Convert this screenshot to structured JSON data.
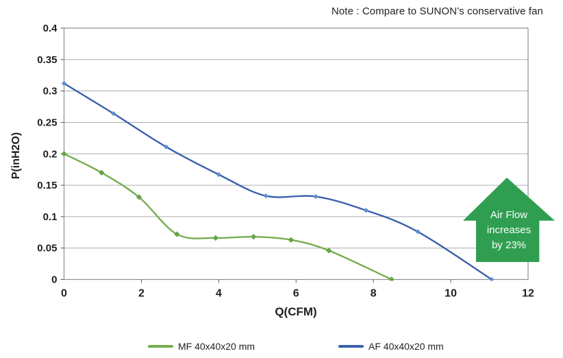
{
  "note": "Note : Compare to SUNON’s conservative fan",
  "annotation": {
    "line1": "Air Flow",
    "line2": "increases",
    "line3": "by 23%",
    "color": "#2f9e50",
    "text_color": "#ffffff"
  },
  "chart_data": {
    "type": "line",
    "title": "",
    "xlabel": "Q(CFM)",
    "ylabel": "P(inH2O)",
    "xlim": [
      0,
      12
    ],
    "ylim": [
      0,
      0.4
    ],
    "xticks": [
      0,
      2,
      4,
      6,
      8,
      10,
      12
    ],
    "yticks": [
      0,
      0.05,
      0.1,
      0.15,
      0.2,
      0.25,
      0.3,
      0.35,
      0.4
    ],
    "grid": "horizontal",
    "legend_position": "bottom",
    "series": [
      {
        "name": "MF 40x40x20 mm",
        "color": "#76ad50",
        "marker_color": "#67a548",
        "marker": "diamond",
        "x": [
          0,
          0.97,
          1.94,
          2.92,
          3.92,
          4.9,
          5.87,
          6.85,
          8.47
        ],
        "y": [
          0.2,
          0.17,
          0.131,
          0.072,
          0.066,
          0.068,
          0.063,
          0.046,
          0
        ]
      },
      {
        "name": "AF 40x40x20 mm",
        "color": "#3a60ac",
        "marker_color": "#5d8ed1",
        "marker": "diamond",
        "x": [
          0,
          1.28,
          2.64,
          4.0,
          5.22,
          6.51,
          7.81,
          9.15,
          11.06
        ],
        "y": [
          0.312,
          0.264,
          0.211,
          0.167,
          0.133,
          0.132,
          0.11,
          0.076,
          0
        ]
      }
    ],
    "colors": {
      "gridline": "#acacac",
      "border": "#8e8e8e",
      "tick": "#595959"
    }
  }
}
